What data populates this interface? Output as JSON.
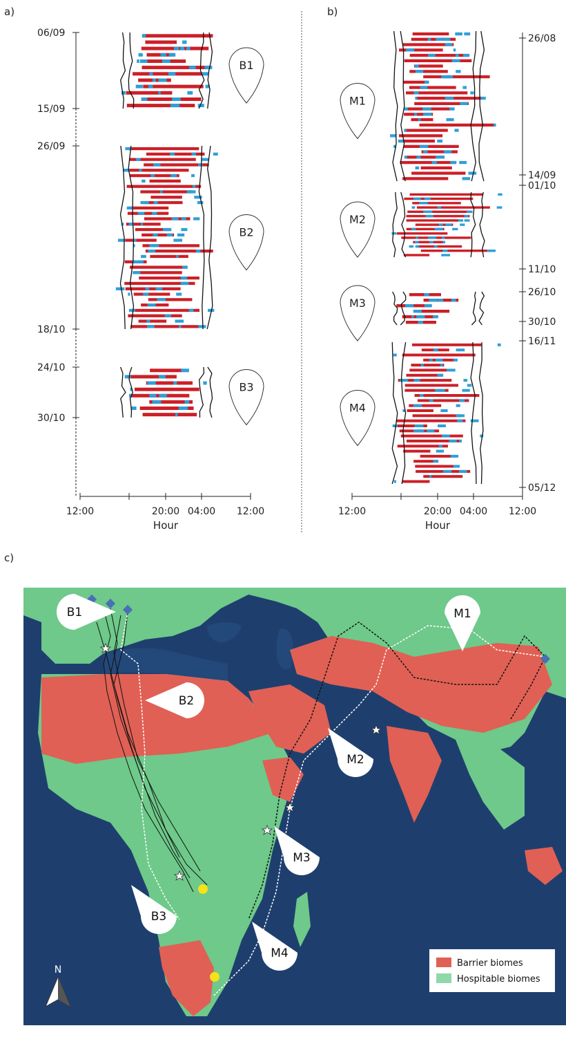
{
  "figure": {
    "panel_letters": {
      "a": "a)",
      "b": "b)",
      "c": "c)"
    },
    "north_label": "N"
  },
  "chart_data": [
    {
      "type": "actogram",
      "panel": "a",
      "xlabel": "Hour",
      "x_ticks": [
        "12:00",
        "20:00",
        "04:00",
        "12:00"
      ],
      "y_ticks": [
        "06/09",
        "15/09",
        "26/09",
        "18/10",
        "24/10",
        "30/10"
      ],
      "y_axis_side": "left",
      "series": [
        {
          "name": "B1",
          "start": "06/09",
          "end": "15/09",
          "rows": 12
        },
        {
          "name": "B2",
          "start": "26/09",
          "end": "18/10",
          "rows": 34
        },
        {
          "name": "B3",
          "start": "24/10",
          "end": "30/10",
          "rows": 8
        }
      ]
    },
    {
      "type": "actogram",
      "panel": "b",
      "xlabel": "Hour",
      "x_ticks": [
        "12:00",
        "20:00",
        "04:00",
        "12:00"
      ],
      "y_ticks": [
        "26/08",
        "14/09",
        "01/10",
        "11/10",
        "26/10",
        "30/10",
        "16/11",
        "05/12"
      ],
      "y_axis_side": "right",
      "series": [
        {
          "name": "M1",
          "start": "26/08",
          "end": "14/09",
          "rows": 28
        },
        {
          "name": "M2",
          "start": "01/10",
          "end": "11/10",
          "rows": 15
        },
        {
          "name": "M3",
          "start": "26/10",
          "end": "30/10",
          "rows": 6
        },
        {
          "name": "M4",
          "start": "16/11",
          "end": "05/12",
          "rows": 28
        }
      ]
    },
    {
      "type": "map",
      "panel": "c",
      "route_labels": [
        "B1",
        "B2",
        "B3",
        "M1",
        "M2",
        "M3",
        "M4"
      ],
      "legend": [
        {
          "label": "Barrier biomes",
          "color": "#e06055"
        },
        {
          "label": "Hospitable biomes",
          "color": "#8fd9a8"
        }
      ]
    }
  ],
  "colors": {
    "barrier": "#e06055",
    "hospitable": "#6ec98a",
    "ocean": "#1e3f6e",
    "activity_red": "#cc1f27",
    "activity_blue": "#2e9fd8"
  }
}
